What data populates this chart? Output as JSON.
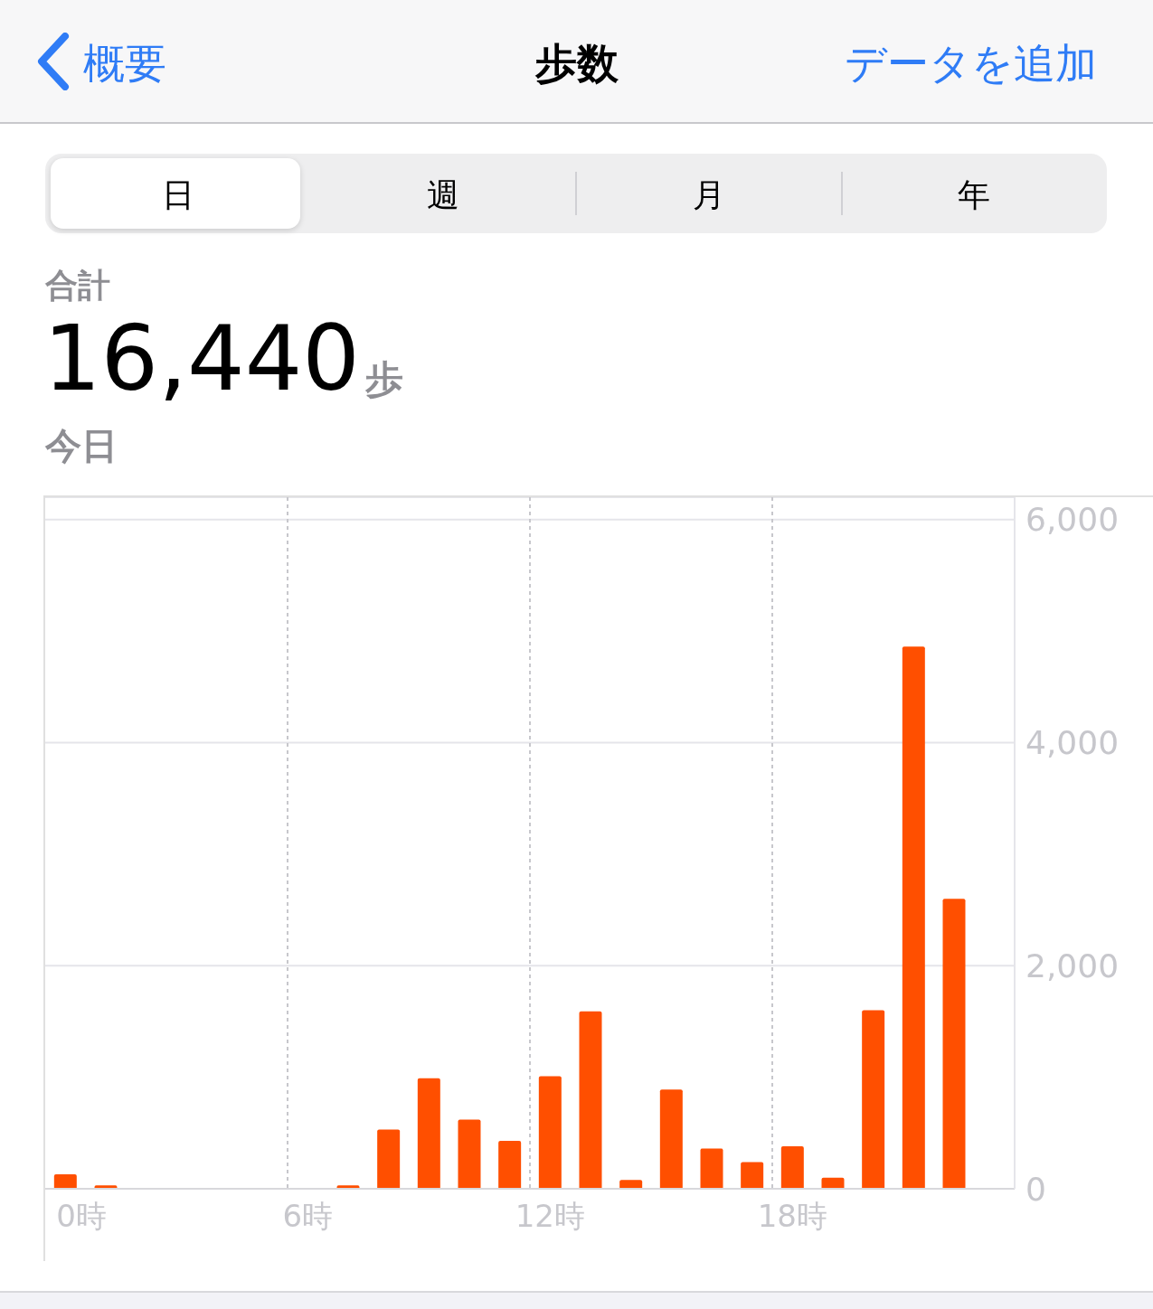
{
  "chart_data": {
    "type": "bar",
    "title": "歩数",
    "annotations": [
      "概要",
      "データを追加",
      "日",
      "週",
      "月",
      "年",
      "合計",
      "16,440",
      "歩",
      "今日"
    ],
    "categories": [
      "0時",
      null,
      null,
      null,
      null,
      null,
      "6時",
      null,
      null,
      null,
      null,
      null,
      "12時",
      null,
      null,
      null,
      null,
      null,
      "18時",
      null,
      null,
      null,
      null,
      null
    ],
    "values": [
      130,
      30,
      null,
      null,
      null,
      null,
      null,
      30,
      530,
      990,
      620,
      430,
      1010,
      1590,
      80,
      890,
      360,
      240,
      380,
      100,
      1600,
      4860,
      2600,
      null
    ],
    "color": "#ff4f00",
    "ylim": [
      0,
      6200
    ],
    "yticks": [
      0,
      {
        "value": 2000,
        "label": "2,000"
      },
      {
        "value": 4000,
        "label": "4,000"
      },
      {
        "value": 6000,
        "label": "6,000"
      }
    ],
    "grid": true
  }
}
